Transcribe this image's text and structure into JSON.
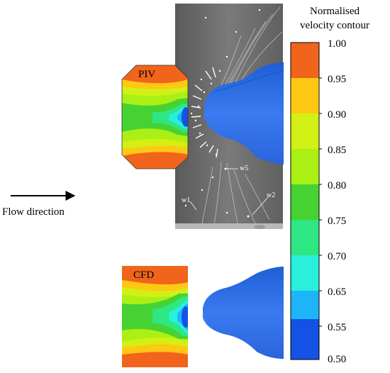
{
  "legend": {
    "title_line1": "Normalised",
    "title_line2": "velocity contour",
    "ticks": [
      "1.00",
      "0.95",
      "0.90",
      "0.85",
      "0.80",
      "0.75",
      "0.70",
      "0.65",
      "0.55",
      "0.50"
    ],
    "colors": [
      "#f0641c",
      "#ffc814",
      "#d2f014",
      "#aaf014",
      "#46d232",
      "#2ee682",
      "#28f0dc",
      "#1eb4fa",
      "#1452e6"
    ]
  },
  "labels": {
    "piv": "PIV",
    "cfd": "CFD",
    "flow_direction": "Flow direction",
    "w1": "w1",
    "w2": "w2",
    "w5": "w5"
  }
}
